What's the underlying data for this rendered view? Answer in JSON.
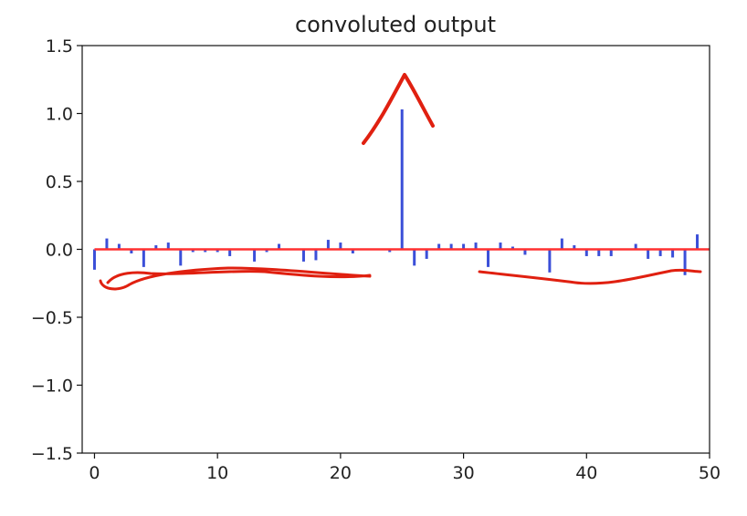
{
  "chart_data": {
    "type": "stem",
    "title": "convoluted output",
    "xlabel": "",
    "ylabel": "",
    "xlim": [
      -1,
      50
    ],
    "ylim": [
      -1.5,
      1.5
    ],
    "xticks": [
      0,
      10,
      20,
      30,
      40,
      50
    ],
    "xtick_labels": [
      "0",
      "10",
      "20",
      "30",
      "40",
      "50"
    ],
    "yticks": [
      -1.5,
      -1.0,
      -0.5,
      0.0,
      0.5,
      1.0,
      1.5
    ],
    "ytick_labels": [
      "−1.5",
      "−1.0",
      "−0.5",
      "0.0",
      "0.5",
      "1.0",
      "1.5"
    ],
    "grid": false,
    "stem_color": "#3b4fd8",
    "baseline_color": "#ff3030",
    "annotation_color": "#e02010",
    "series": [
      {
        "x": [
          0,
          1,
          2,
          3,
          4,
          5,
          6,
          7,
          8,
          9,
          10,
          11,
          12,
          13,
          14,
          15,
          16,
          17,
          18,
          19,
          20,
          21,
          22,
          23,
          24,
          25,
          26,
          27,
          28,
          29,
          30,
          31,
          32,
          33,
          34,
          35,
          36,
          37,
          38,
          39,
          40,
          41,
          42,
          43,
          44,
          45,
          46,
          47,
          48,
          49
        ],
        "y": [
          -0.15,
          0.08,
          0.04,
          -0.03,
          -0.13,
          0.03,
          0.05,
          -0.12,
          -0.02,
          -0.02,
          -0.02,
          -0.05,
          0.0,
          -0.09,
          -0.02,
          0.04,
          0.0,
          -0.09,
          -0.08,
          0.07,
          0.05,
          -0.03,
          0.0,
          0.0,
          -0.02,
          1.03,
          -0.12,
          -0.07,
          0.04,
          0.04,
          0.04,
          0.05,
          -0.13,
          0.05,
          0.02,
          -0.04,
          0.0,
          -0.17,
          0.08,
          0.03,
          -0.05,
          -0.05,
          -0.05,
          0.0,
          0.04,
          -0.07,
          -0.05,
          -0.06,
          -0.19,
          0.11
        ]
      }
    ]
  }
}
